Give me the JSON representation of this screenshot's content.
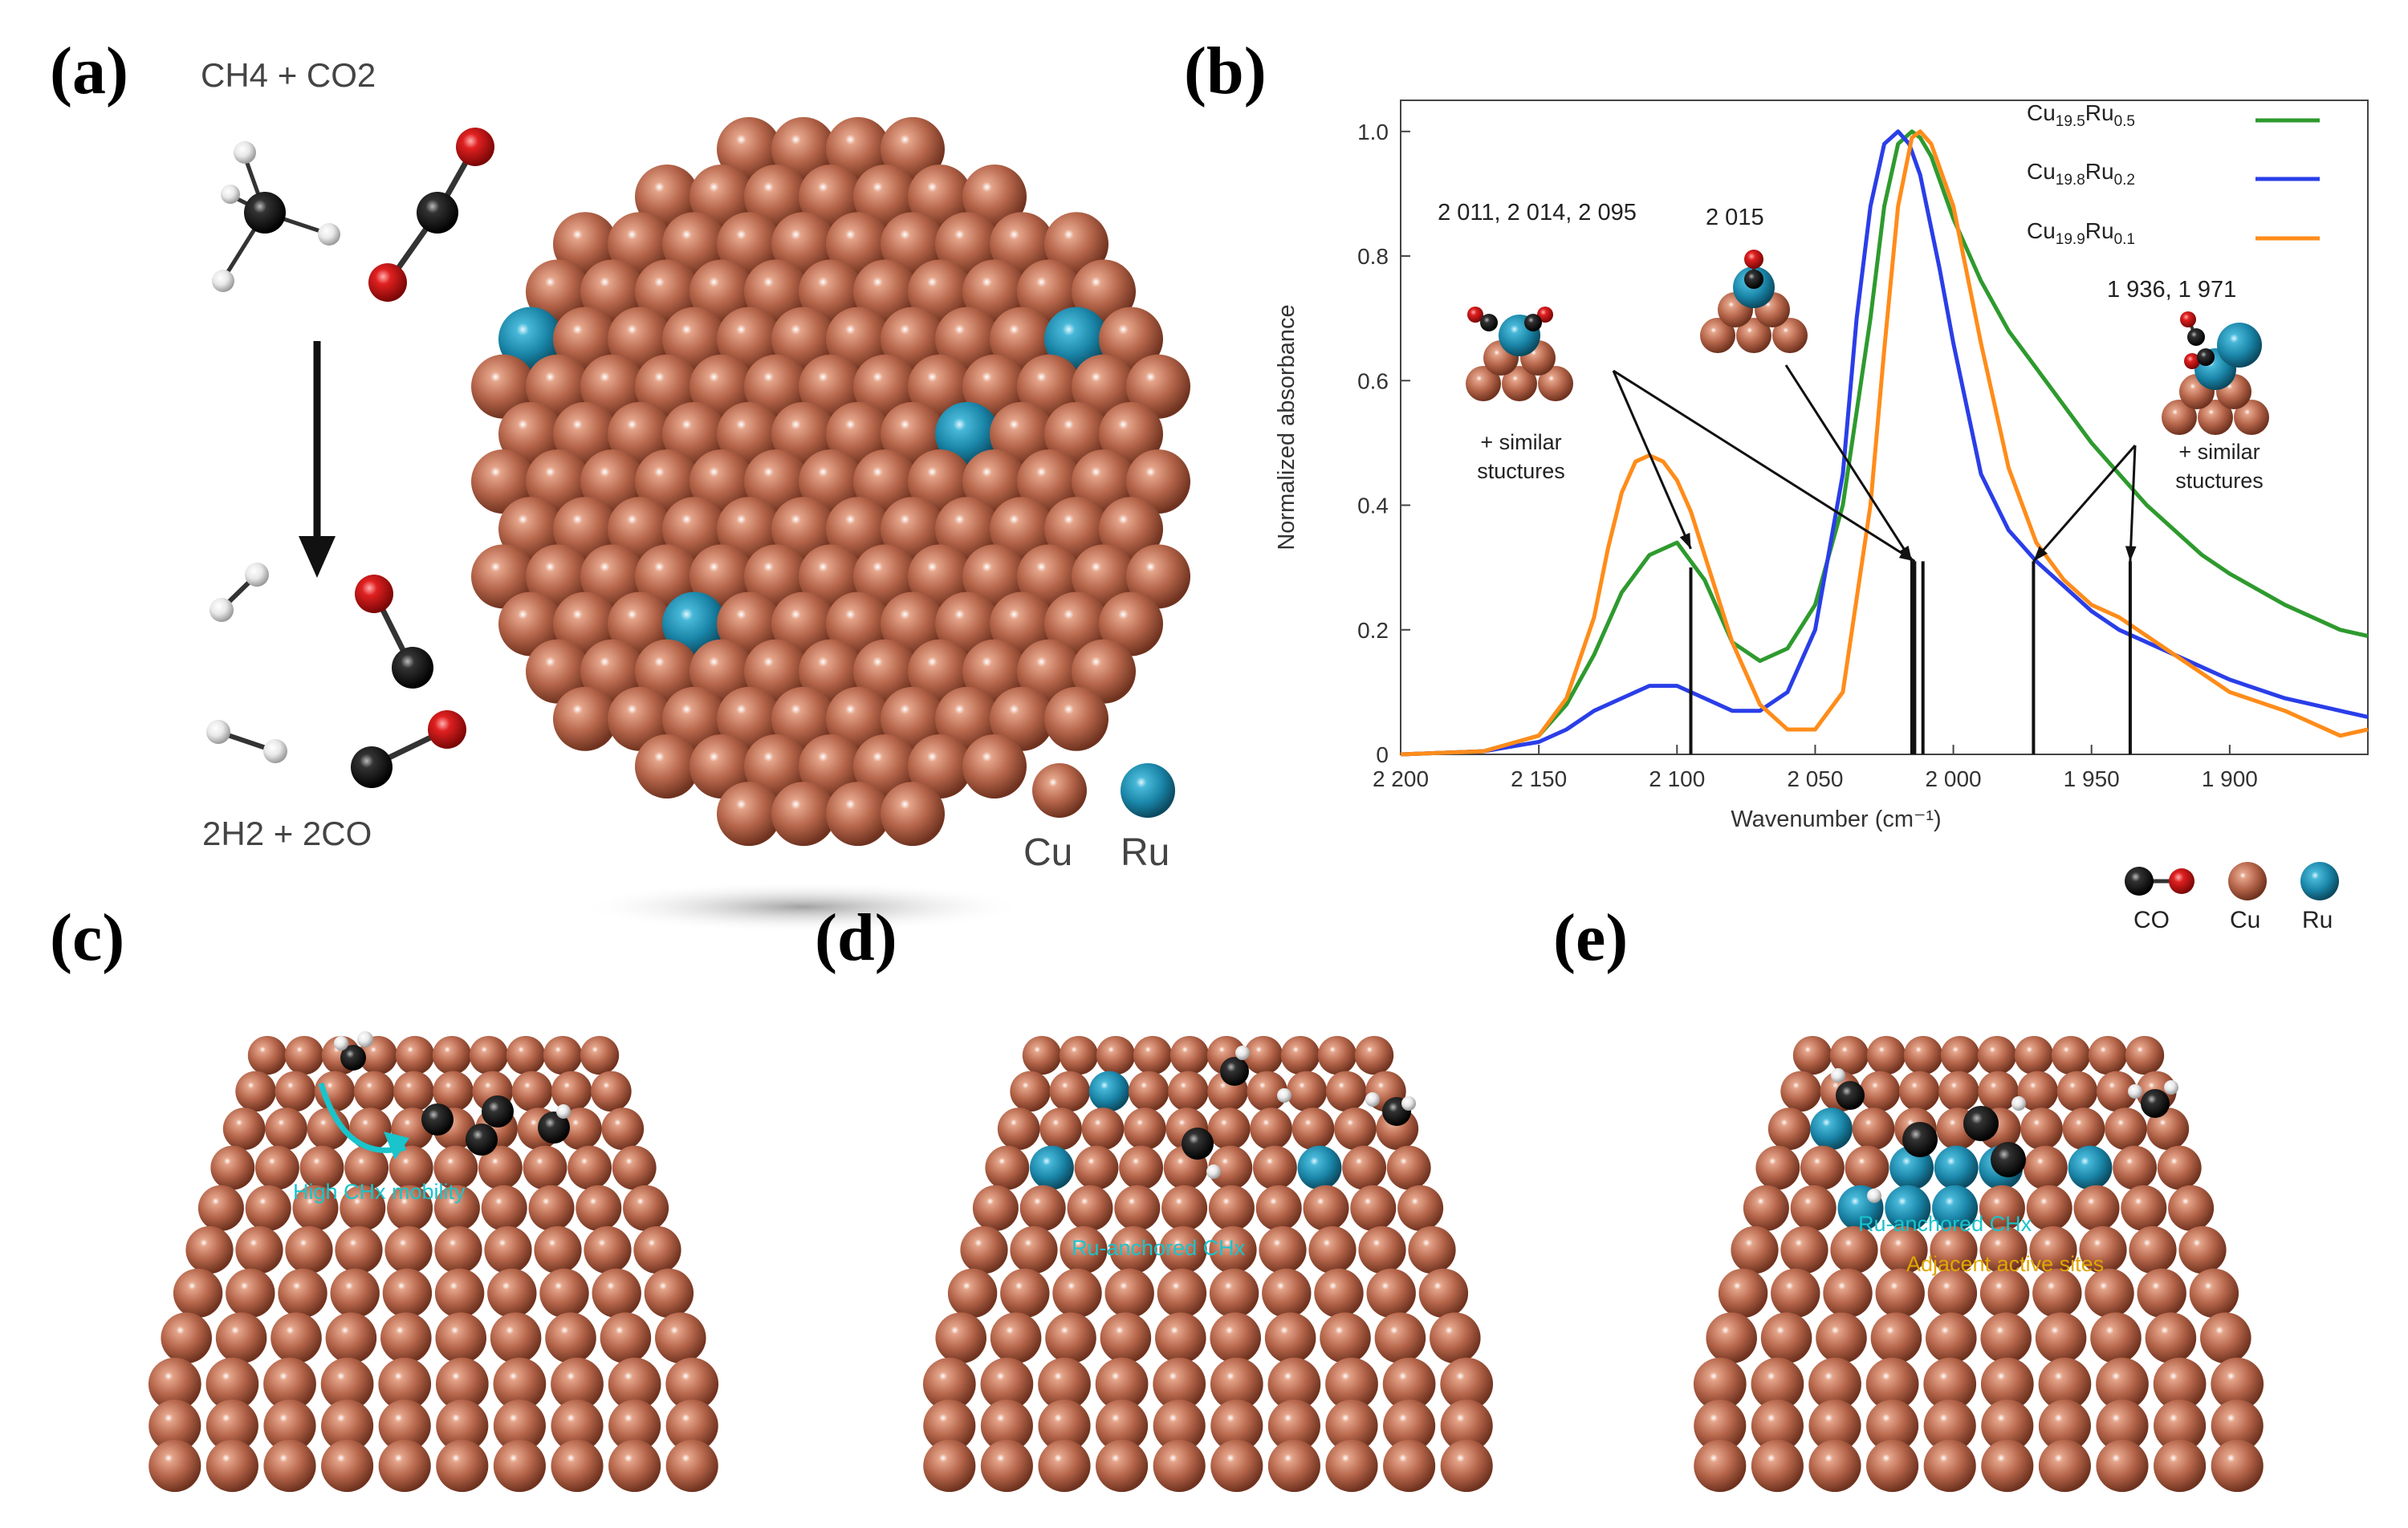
{
  "panels": {
    "a": {
      "label": "(a)",
      "reactants": "CH4 + CO2",
      "products": "2H2 + 2CO",
      "legend": [
        "Cu",
        "Ru"
      ]
    },
    "b": {
      "label": "(b)",
      "annotations": [
        {
          "text": "2 011, 2 014, 2 095"
        },
        {
          "text": "2 015"
        },
        {
          "text": "1 936, 1 971"
        }
      ],
      "similar_note": "+ similar stuctures",
      "legend_bottom": [
        "CO",
        "Cu",
        "Ru"
      ]
    },
    "c": {
      "label": "(c)",
      "caption": "High CHx mobility"
    },
    "d": {
      "label": "(d)",
      "caption": "Ru-anchored CHx"
    },
    "e": {
      "label": "(e)",
      "caption1": "Ru-anchored CHx",
      "caption2": "Adjacent active sites"
    }
  },
  "colors": {
    "cu": "#b5654a",
    "ru": "#1f8fb3",
    "o": "#d01818",
    "c": "#111111",
    "h": "#e8e8e8",
    "s1": "#2e9a2e",
    "s2": "#2a3ee8",
    "s3": "#ff8c1a",
    "cyan": "#19c4cc"
  },
  "chart_data": {
    "type": "line",
    "title": "",
    "xlabel": "Wavenumber (cm⁻¹)",
    "ylabel": "Normalized absorbance",
    "xlim": [
      2200,
      1850
    ],
    "ylim": [
      0,
      1.05
    ],
    "xticks": [
      2200,
      2150,
      2100,
      2050,
      2000,
      1950,
      1900
    ],
    "xtick_labels": [
      "2 200",
      "2 150",
      "2 100",
      "2 050",
      "2 000",
      "1 950",
      "1 900"
    ],
    "yticks": [
      0,
      0.2,
      0.4,
      0.6,
      0.8,
      1.0
    ],
    "ytick_labels": [
      "0",
      "0.2",
      "0.4",
      "0.6",
      "0.8",
      "1.0"
    ],
    "series": [
      {
        "name": "Cu19.5Ru0.5",
        "label_main": "Cu",
        "sub1": "19.5",
        "label_mid": "Ru",
        "sub2": "0.5",
        "x": [
          2200,
          2170,
          2150,
          2140,
          2130,
          2120,
          2110,
          2100,
          2090,
          2080,
          2070,
          2060,
          2050,
          2040,
          2030,
          2025,
          2020,
          2015,
          2012,
          2008,
          2000,
          1990,
          1980,
          1970,
          1960,
          1950,
          1940,
          1930,
          1920,
          1910,
          1900,
          1880,
          1870,
          1860,
          1850
        ],
        "y": [
          0,
          0.005,
          0.03,
          0.08,
          0.16,
          0.26,
          0.32,
          0.34,
          0.28,
          0.18,
          0.15,
          0.17,
          0.24,
          0.4,
          0.7,
          0.88,
          0.98,
          1.0,
          0.99,
          0.96,
          0.86,
          0.76,
          0.68,
          0.62,
          0.56,
          0.5,
          0.45,
          0.4,
          0.36,
          0.32,
          0.29,
          0.24,
          0.22,
          0.2,
          0.19
        ]
      },
      {
        "name": "Cu19.8Ru0.2",
        "label_main": "Cu",
        "sub1": "19.8",
        "label_mid": "Ru",
        "sub2": "0.2",
        "x": [
          2200,
          2170,
          2150,
          2140,
          2130,
          2120,
          2110,
          2100,
          2090,
          2080,
          2070,
          2060,
          2050,
          2040,
          2035,
          2030,
          2025,
          2020,
          2016,
          2012,
          2005,
          2000,
          1990,
          1980,
          1970,
          1960,
          1950,
          1940,
          1930,
          1920,
          1910,
          1900,
          1880,
          1860,
          1850
        ],
        "y": [
          0,
          0.005,
          0.02,
          0.04,
          0.07,
          0.09,
          0.11,
          0.11,
          0.09,
          0.07,
          0.07,
          0.1,
          0.2,
          0.45,
          0.7,
          0.88,
          0.98,
          1.0,
          0.98,
          0.93,
          0.78,
          0.66,
          0.45,
          0.36,
          0.31,
          0.27,
          0.23,
          0.2,
          0.18,
          0.16,
          0.14,
          0.12,
          0.09,
          0.07,
          0.06
        ]
      },
      {
        "name": "Cu19.9Ru0.1",
        "label_main": "Cu",
        "sub1": "19.9",
        "label_mid": "Ru",
        "sub2": "0.1",
        "x": [
          2200,
          2170,
          2150,
          2140,
          2130,
          2125,
          2120,
          2115,
          2110,
          2105,
          2100,
          2095,
          2090,
          2080,
          2070,
          2060,
          2050,
          2040,
          2030,
          2025,
          2020,
          2015,
          2012,
          2008,
          2000,
          1990,
          1980,
          1970,
          1960,
          1950,
          1940,
          1930,
          1920,
          1910,
          1900,
          1880,
          1870,
          1860,
          1850
        ],
        "y": [
          0,
          0.005,
          0.03,
          0.09,
          0.22,
          0.33,
          0.42,
          0.47,
          0.48,
          0.47,
          0.44,
          0.39,
          0.32,
          0.18,
          0.08,
          0.04,
          0.04,
          0.1,
          0.4,
          0.65,
          0.88,
          0.99,
          1.0,
          0.98,
          0.88,
          0.66,
          0.46,
          0.34,
          0.28,
          0.24,
          0.22,
          0.19,
          0.16,
          0.13,
          0.1,
          0.07,
          0.05,
          0.03,
          0.04
        ]
      }
    ],
    "marker_lines": [
      2095,
      2015,
      2014,
      2011,
      1971,
      1936
    ]
  }
}
